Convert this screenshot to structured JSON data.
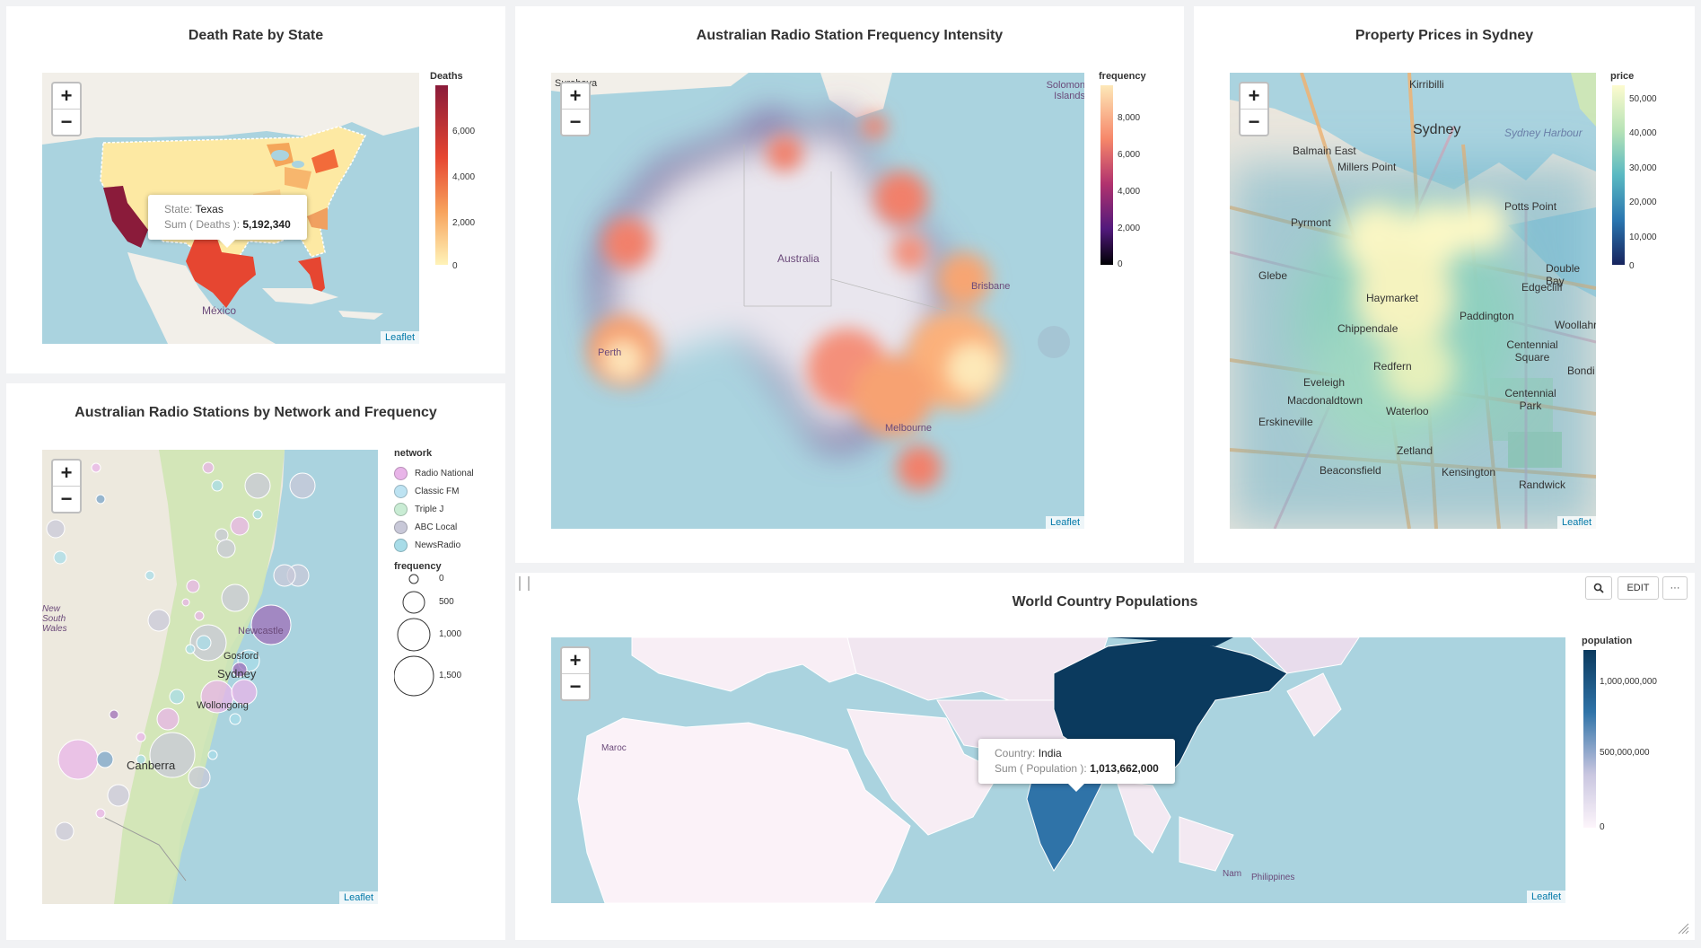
{
  "panels": {
    "death": {
      "title": "Death Rate by State",
      "legend_title": "Deaths",
      "ticks": [
        "6,000",
        "4,000",
        "2,000",
        "0"
      ],
      "tooltip": {
        "k1": "State: ",
        "v1": "Texas",
        "k2": "Sum ( Deaths ): ",
        "v2": "5,192,340"
      },
      "labels": {
        "mexico": "México"
      },
      "attribution": "Leaflet"
    },
    "radio_freq": {
      "title": "Australian Radio Station Frequency Intensity",
      "legend_title": "frequency",
      "ticks": [
        "8,000",
        "6,000",
        "4,000",
        "2,000",
        "0"
      ],
      "labels": {
        "australia": "Australia",
        "brisbane": "Brisbane",
        "perth": "Perth",
        "melbourne": "Melbourne",
        "solomon": "Solomon Islands",
        "surabaya": "Surabaya"
      },
      "attribution": "Leaflet"
    },
    "property": {
      "title": "Property Prices in Sydney",
      "legend_title": "price",
      "ticks": [
        "50,000",
        "40,000",
        "30,000",
        "20,000",
        "10,000",
        "0"
      ],
      "labels": [
        "Kirribilli",
        "Sydney",
        "Balmain East",
        "Millers Point",
        "Pyrmont",
        "Potts Point",
        "Glebe",
        "Edgecliff",
        "Double Bay",
        "Haymarket",
        "Paddington",
        "Woollahra",
        "Chippendale",
        "Centennial Square",
        "Eveleigh",
        "Redfern",
        "Centennial Park",
        "Macdonaldtown",
        "Waterloo",
        "Erskineville",
        "Zetland",
        "Beaconsfield",
        "Kensington",
        "Randwick",
        "Sydney Harbour",
        "Bondi"
      ],
      "attribution": "Leaflet"
    },
    "network": {
      "title": "Australian Radio Stations by Network and Frequency",
      "legend_title": "network",
      "networks": [
        {
          "name": "Radio National",
          "color": "#e8b4e8"
        },
        {
          "name": "Classic FM",
          "color": "#bde3f2"
        },
        {
          "name": "Triple J",
          "color": "#c9ecd4"
        },
        {
          "name": "ABC Local",
          "color": "#c8c8d8"
        },
        {
          "name": "NewsRadio",
          "color": "#a8dce8"
        }
      ],
      "freq_title": "frequency",
      "freq_ticks": [
        "0",
        "500",
        "1,000",
        "1,500"
      ],
      "labels": {
        "sydney": "Sydney",
        "newcastle": "Newcastle",
        "gosford": "Gosford",
        "wollongong": "Wollongong",
        "canberra": "Canberra",
        "nsw": "New South Wales"
      },
      "attribution": "Leaflet"
    },
    "world": {
      "title": "World Country Populations",
      "legend_title": "population",
      "ticks": [
        "1,000,000,000",
        "500,000,000",
        "0"
      ],
      "tooltip": {
        "k1": "Country: ",
        "v1": "India",
        "k2": "Sum ( Population ): ",
        "v2": "1,013,662,000"
      },
      "buttons": {
        "edit": "EDIT",
        "more": "···",
        "zoom": "zoom-icon"
      },
      "labels": {
        "maroc": "Maroc",
        "philippines": "Philippines",
        "vietnam": "Nam"
      },
      "attribution": "Leaflet"
    }
  },
  "zoom": {
    "in": "+",
    "out": "−"
  }
}
